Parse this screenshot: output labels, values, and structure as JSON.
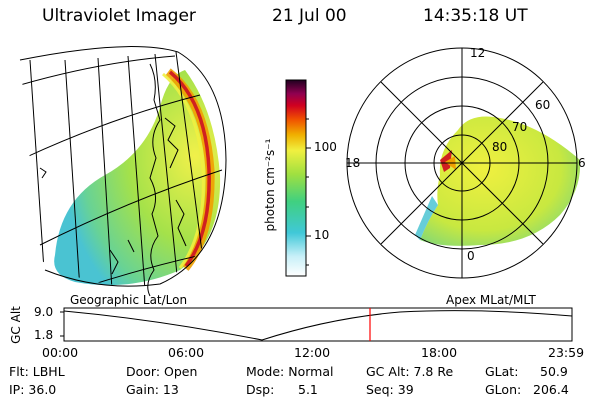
{
  "header": {
    "title": "Ultraviolet Imager",
    "date": "21 Jul 00",
    "time": "14:35:18 UT"
  },
  "colorbar": {
    "unit_label": "photon cm⁻²s⁻¹",
    "tick_labels": [
      "100",
      "10"
    ]
  },
  "polar_plot": {
    "mlt_labels": [
      "12",
      "18",
      "6",
      "0"
    ],
    "lat_labels": [
      "60",
      "70",
      "80"
    ]
  },
  "map_labels": {
    "left": "Geographic Lat/Lon",
    "right": "Apex MLat/MLT"
  },
  "altitude_plot": {
    "axis_label": "GC Alt",
    "y_ticks": [
      "9.0",
      "1.8"
    ],
    "x_ticks": [
      "00:00",
      "06:00",
      "12:00",
      "18:00",
      "23:59"
    ]
  },
  "info": {
    "row1": {
      "filter": "Flt: LBHL",
      "door": "Door: Open",
      "mode": "Mode: Normal",
      "gc_alt": "GC Alt: 7.8 Re",
      "glat": "GLat:",
      "glat_value": "50.9"
    },
    "row2": {
      "ip": "IP: 36.0",
      "gain": "Gain: 13",
      "dsp": "Dsp:",
      "dsp_value": "5.1",
      "seq": "Seq: 39",
      "glon": "GLon:",
      "glon_value": "206.4"
    }
  },
  "colors": {
    "aurora_high": "#d02020",
    "aurora_mid": "#f0a000",
    "aurora_low": "#e8e830",
    "aurora_base": "#a0e040",
    "aurora_faint": "#40c0d0",
    "marker": "#ff0000"
  }
}
